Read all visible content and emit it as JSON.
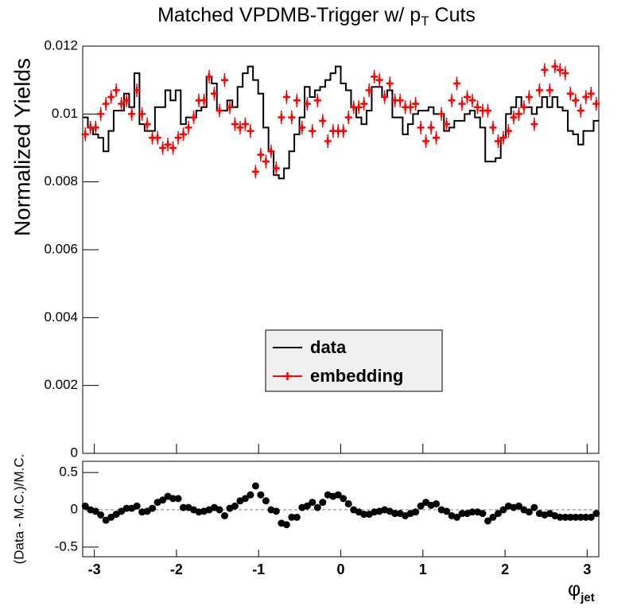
{
  "chart_data": [
    {
      "type": "step",
      "title": "Matched VPDMB-Trigger w/ p",
      "title_sub": "T",
      "title_end": " Cuts",
      "ylabel": "Normalized Yields",
      "legend": "bottom-center",
      "xlim": [
        -3.1416,
        3.1416
      ],
      "xticks": [
        -3,
        -2,
        -1,
        0,
        1,
        2,
        3
      ],
      "ylim": [
        0,
        0.012
      ],
      "yticks": [
        0,
        0.002,
        0.004,
        0.006,
        0.008,
        0.01,
        0.012
      ],
      "x": [
        -3.1102,
        -3.0473,
        -2.9845,
        -2.9217,
        -2.8588,
        -2.796,
        -2.7332,
        -2.6704,
        -2.6075,
        -2.5447,
        -2.4819,
        -2.419,
        -2.3562,
        -2.2934,
        -2.2305,
        -2.1677,
        -2.1049,
        -2.042,
        -1.9792,
        -1.9164,
        -1.8535,
        -1.7907,
        -1.7279,
        -1.665,
        -1.6022,
        -1.5394,
        -1.4765,
        -1.4137,
        -1.3509,
        -1.2881,
        -1.2252,
        -1.1624,
        -1.0996,
        -1.0367,
        -0.9739,
        -0.9111,
        -0.8482,
        -0.7854,
        -0.7226,
        -0.6597,
        -0.5969,
        -0.5341,
        -0.4712,
        -0.4084,
        -0.3456,
        -0.2827,
        -0.2199,
        -0.1571,
        -0.0942,
        -0.0314,
        0.0314,
        0.0942,
        0.1571,
        0.2199,
        0.2827,
        0.3456,
        0.4084,
        0.4712,
        0.5341,
        0.5969,
        0.6597,
        0.7226,
        0.7854,
        0.8482,
        0.9111,
        0.9739,
        1.0367,
        1.0996,
        1.1624,
        1.2252,
        1.2881,
        1.3509,
        1.4137,
        1.4765,
        1.5394,
        1.6022,
        1.665,
        1.7279,
        1.7907,
        1.8535,
        1.9164,
        1.9792,
        2.042,
        2.1049,
        2.1677,
        2.2305,
        2.2934,
        2.3562,
        2.419,
        2.4819,
        2.5447,
        2.6075,
        2.6704,
        2.7332,
        2.796,
        2.8588,
        2.9217,
        2.9845,
        3.0473,
        3.1102
      ],
      "series": [
        {
          "name": "data",
          "color": "#000000",
          "mark": "step",
          "values": [
            0.0099,
            0.0096,
            0.0094,
            0.0093,
            0.0089,
            0.0095,
            0.0101,
            0.0101,
            0.0106,
            0.0102,
            0.0112,
            0.0097,
            0.0095,
            0.0095,
            0.0102,
            0.0102,
            0.0107,
            0.0104,
            0.0107,
            0.0097,
            0.0099,
            0.0099,
            0.0101,
            0.0102,
            0.0111,
            0.0109,
            0.0101,
            0.0101,
            0.0104,
            0.0102,
            0.0108,
            0.0112,
            0.0114,
            0.011,
            0.0106,
            0.0096,
            0.0089,
            0.0082,
            0.0081,
            0.0084,
            0.0089,
            0.0094,
            0.0099,
            0.0108,
            0.0105,
            0.0107,
            0.0108,
            0.011,
            0.0112,
            0.0114,
            0.0109,
            0.0107,
            0.0102,
            0.0099,
            0.0097,
            0.0101,
            0.0108,
            0.0108,
            0.0105,
            0.0107,
            0.0099,
            0.0099,
            0.0094,
            0.0097,
            0.01,
            0.0101,
            0.0101,
            0.0102,
            0.01,
            0.01,
            0.0095,
            0.0096,
            0.0098,
            0.0098,
            0.01,
            0.0101,
            0.0099,
            0.0096,
            0.0086,
            0.0086,
            0.0087,
            0.0093,
            0.01,
            0.0102,
            0.0105,
            0.0102,
            0.0102,
            0.01,
            0.0102,
            0.0105,
            0.0102,
            0.0105,
            0.0102,
            0.0101,
            0.0095,
            0.0094,
            0.0091,
            0.0095,
            0.0095,
            0.0098
          ]
        },
        {
          "name": "embedding",
          "color": "#ff0000",
          "mark": "cross",
          "error": 0.0002,
          "values": [
            0.0094,
            0.0096,
            0.0096,
            0.01,
            0.0103,
            0.0105,
            0.0107,
            0.0103,
            0.0104,
            0.01,
            0.0107,
            0.01,
            0.0097,
            0.0093,
            0.0093,
            0.009,
            0.0091,
            0.009,
            0.0093,
            0.0094,
            0.0096,
            0.0099,
            0.0104,
            0.0104,
            0.0111,
            0.0106,
            0.0101,
            0.011,
            0.0102,
            0.0097,
            0.0096,
            0.0097,
            0.0095,
            0.0083,
            0.0088,
            0.0086,
            0.0089,
            0.0084,
            0.0099,
            0.0105,
            0.0099,
            0.0104,
            0.0096,
            0.0103,
            0.0095,
            0.0104,
            0.0098,
            0.0092,
            0.0095,
            0.0095,
            0.0095,
            0.0099,
            0.0102,
            0.0102,
            0.0103,
            0.0107,
            0.0111,
            0.011,
            0.0105,
            0.0109,
            0.0104,
            0.0104,
            0.0102,
            0.0102,
            0.0103,
            0.0096,
            0.0092,
            0.0096,
            0.0093,
            0.01,
            0.0097,
            0.0104,
            0.0109,
            0.0103,
            0.0105,
            0.0104,
            0.0102,
            0.0101,
            0.0101,
            0.0096,
            0.0092,
            0.0093,
            0.0095,
            0.0099,
            0.01,
            0.0102,
            0.0105,
            0.0097,
            0.0107,
            0.0113,
            0.0107,
            0.0114,
            0.0113,
            0.0112,
            0.0106,
            0.0104,
            0.0101,
            0.0105,
            0.0106,
            0.0103
          ]
        }
      ]
    },
    {
      "type": "scatter",
      "ylabel": "(Data - M.C.)/M.C.",
      "xlabel": "φ",
      "xlabel_sub": "jet",
      "xlim": [
        -3.1416,
        3.1416
      ],
      "xticks": [
        -3,
        -2,
        -1,
        0,
        1,
        2,
        3
      ],
      "ylim": [
        -0.63,
        0.65
      ],
      "yticks": [
        -0.5,
        0,
        0.5
      ],
      "x": [
        -3.1102,
        -3.0473,
        -2.9845,
        -2.9217,
        -2.8588,
        -2.796,
        -2.7332,
        -2.6704,
        -2.6075,
        -2.5447,
        -2.4819,
        -2.419,
        -2.3562,
        -2.2934,
        -2.2305,
        -2.1677,
        -2.1049,
        -2.042,
        -1.9792,
        -1.9164,
        -1.8535,
        -1.7907,
        -1.7279,
        -1.665,
        -1.6022,
        -1.5394,
        -1.4765,
        -1.4137,
        -1.3509,
        -1.2881,
        -1.2252,
        -1.1624,
        -1.0996,
        -1.0367,
        -0.9739,
        -0.9111,
        -0.8482,
        -0.7854,
        -0.7226,
        -0.6597,
        -0.5969,
        -0.5341,
        -0.4712,
        -0.4084,
        -0.3456,
        -0.2827,
        -0.2199,
        -0.1571,
        -0.0942,
        -0.0314,
        0.0314,
        0.0942,
        0.1571,
        0.2199,
        0.2827,
        0.3456,
        0.4084,
        0.4712,
        0.5341,
        0.5969,
        0.6597,
        0.7226,
        0.7854,
        0.8482,
        0.9111,
        0.9739,
        1.0367,
        1.0996,
        1.1624,
        1.2252,
        1.2881,
        1.3509,
        1.4137,
        1.4765,
        1.5394,
        1.6022,
        1.665,
        1.7279,
        1.7907,
        1.8535,
        1.9164,
        1.9792,
        2.042,
        2.1049,
        2.1677,
        2.2305,
        2.2934,
        2.3562,
        2.419,
        2.4819,
        2.5447,
        2.6075,
        2.6704,
        2.7332,
        2.796,
        2.8588,
        2.9217,
        2.9845,
        3.0473,
        3.1102
      ],
      "color": "#000000",
      "values": [
        0.05,
        0,
        -0.02,
        -0.07,
        -0.14,
        -0.1,
        -0.06,
        -0.02,
        0.02,
        0.02,
        0.05,
        -0.03,
        -0.02,
        0.02,
        0.1,
        0.13,
        0.18,
        0.15,
        0.15,
        0.03,
        0.03,
        0,
        -0.03,
        -0.02,
        0,
        0.03,
        0,
        -0.08,
        0.02,
        0.05,
        0.12,
        0.15,
        0.2,
        0.32,
        0.2,
        0.12,
        0,
        -0.02,
        -0.18,
        -0.2,
        -0.1,
        -0.1,
        0.03,
        0.05,
        0.1,
        0.03,
        0.1,
        0.2,
        0.18,
        0.2,
        0.15,
        0.08,
        0,
        -0.03,
        -0.06,
        -0.06,
        -0.03,
        -0.02,
        0,
        -0.02,
        -0.05,
        -0.05,
        -0.08,
        -0.05,
        -0.03,
        0.05,
        0.1,
        0.06,
        0.08,
        0,
        -0.02,
        -0.08,
        -0.1,
        -0.05,
        -0.05,
        -0.03,
        -0.03,
        -0.05,
        -0.15,
        -0.1,
        -0.05,
        0,
        0.05,
        0.03,
        0.05,
        0,
        -0.03,
        0.03,
        -0.05,
        -0.07,
        -0.05,
        -0.08,
        -0.1,
        -0.1,
        -0.1,
        -0.1,
        -0.1,
        -0.1,
        -0.1,
        -0.05
      ]
    }
  ]
}
